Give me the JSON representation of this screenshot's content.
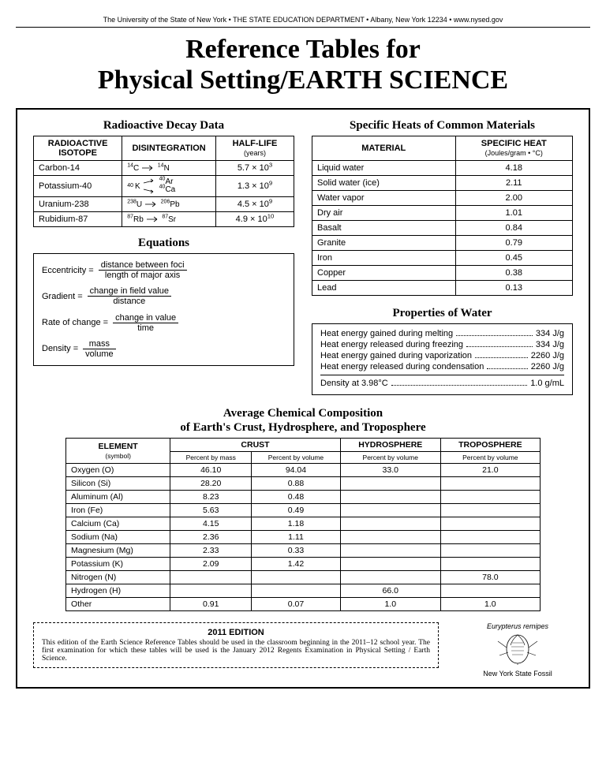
{
  "header": "The University of the State of New York • THE STATE EDUCATION DEPARTMENT • Albany, New York 12234 • www.nysed.gov",
  "mainTitle1": "Reference Tables for",
  "mainTitle2": "Physical Setting/EARTH SCIENCE",
  "decay": {
    "title": "Radioactive Decay Data",
    "headers": {
      "iso": "RADIOACTIVE ISOTOPE",
      "dis": "DISINTEGRATION",
      "hl": "HALF-LIFE",
      "hlSub": "(years)"
    },
    "rows": [
      {
        "iso": "Carbon-14",
        "from": "14",
        "fromEl": "C",
        "to1": "14",
        "to1El": "N",
        "to2": "",
        "to2El": "",
        "hl": "5.7 × 10",
        "exp": "3"
      },
      {
        "iso": "Potassium-40",
        "from": "40",
        "fromEl": "K",
        "to1": "40",
        "to1El": "Ar",
        "to2": "40",
        "to2El": "Ca",
        "hl": "1.3 × 10",
        "exp": "9"
      },
      {
        "iso": "Uranium-238",
        "from": "238",
        "fromEl": "U",
        "to1": "206",
        "to1El": "Pb",
        "to2": "",
        "to2El": "",
        "hl": "4.5 × 10",
        "exp": "9"
      },
      {
        "iso": "Rubidium-87",
        "from": "87",
        "fromEl": "Rb",
        "to1": "87",
        "to1El": "Sr",
        "to2": "",
        "to2El": "",
        "hl": "4.9 × 10",
        "exp": "10"
      }
    ]
  },
  "equations": {
    "title": "Equations",
    "items": [
      {
        "label": "Eccentricity =",
        "num": "distance between foci",
        "den": "length of major axis"
      },
      {
        "label": "Gradient =",
        "num": "change in field value",
        "den": "distance"
      },
      {
        "label": "Rate of change =",
        "num": "change in value",
        "den": "time"
      },
      {
        "label": "Density =",
        "num": "mass",
        "den": "volume"
      }
    ]
  },
  "specHeat": {
    "title": "Specific Heats of Common Materials",
    "headers": {
      "mat": "MATERIAL",
      "sh": "SPECIFIC HEAT",
      "shSub": "(Joules/gram • °C)"
    },
    "rows": [
      {
        "m": "Liquid water",
        "v": "4.18"
      },
      {
        "m": "Solid water (ice)",
        "v": "2.11"
      },
      {
        "m": "Water vapor",
        "v": "2.00"
      },
      {
        "m": "Dry air",
        "v": "1.01"
      },
      {
        "m": "Basalt",
        "v": "0.84"
      },
      {
        "m": "Granite",
        "v": "0.79"
      },
      {
        "m": "Iron",
        "v": "0.45"
      },
      {
        "m": "Copper",
        "v": "0.38"
      },
      {
        "m": "Lead",
        "v": "0.13"
      }
    ]
  },
  "waterProps": {
    "title": "Properties of Water",
    "rows": [
      {
        "l": "Heat energy gained during melting",
        "v": "334 J/g"
      },
      {
        "l": "Heat energy released during freezing",
        "v": "334 J/g"
      },
      {
        "l": "Heat energy gained during vaporization",
        "v": "2260 J/g"
      },
      {
        "l": "Heat energy released during condensation",
        "v": "2260 J/g"
      }
    ],
    "density": {
      "l": "Density at 3.98°C",
      "v": "1.0 g/mL"
    }
  },
  "comp": {
    "title1": "Average Chemical Composition",
    "title2": "of Earth's Crust, Hydrosphere, and Troposphere",
    "headers": {
      "element": "ELEMENT",
      "elSub": "(symbol)",
      "crust": "CRUST",
      "hydro": "HYDROSPHERE",
      "tropo": "TROPOSPHERE",
      "pMass": "Percent by mass",
      "pVol": "Percent by volume"
    },
    "rows": [
      {
        "e": "Oxygen (O)",
        "cm": "46.10",
        "cv": "94.04",
        "hv": "33.0",
        "tv": "21.0"
      },
      {
        "e": "Silicon (Si)",
        "cm": "28.20",
        "cv": "0.88",
        "hv": "",
        "tv": ""
      },
      {
        "e": "Aluminum (Al)",
        "cm": "8.23",
        "cv": "0.48",
        "hv": "",
        "tv": ""
      },
      {
        "e": "Iron (Fe)",
        "cm": "5.63",
        "cv": "0.49",
        "hv": "",
        "tv": ""
      },
      {
        "e": "Calcium (Ca)",
        "cm": "4.15",
        "cv": "1.18",
        "hv": "",
        "tv": ""
      },
      {
        "e": "Sodium (Na)",
        "cm": "2.36",
        "cv": "1.11",
        "hv": "",
        "tv": ""
      },
      {
        "e": "Magnesium (Mg)",
        "cm": "2.33",
        "cv": "0.33",
        "hv": "",
        "tv": ""
      },
      {
        "e": "Potassium (K)",
        "cm": "2.09",
        "cv": "1.42",
        "hv": "",
        "tv": ""
      },
      {
        "e": "Nitrogen (N)",
        "cm": "",
        "cv": "",
        "hv": "",
        "tv": "78.0"
      },
      {
        "e": "Hydrogen (H)",
        "cm": "",
        "cv": "",
        "hv": "66.0",
        "tv": ""
      },
      {
        "e": "Other",
        "cm": "0.91",
        "cv": "0.07",
        "hv": "1.0",
        "tv": "1.0"
      }
    ]
  },
  "edition": {
    "title": "2011 EDITION",
    "text": "This edition of the Earth Science Reference Tables should be used in the classroom beginning in the 2011–12 school year. The first examination for which these tables will be used is the January 2012 Regents Examination in Physical Setting / Earth Science."
  },
  "fossil": {
    "name": "Eurypterus remipes",
    "caption": "New York State Fossil"
  }
}
